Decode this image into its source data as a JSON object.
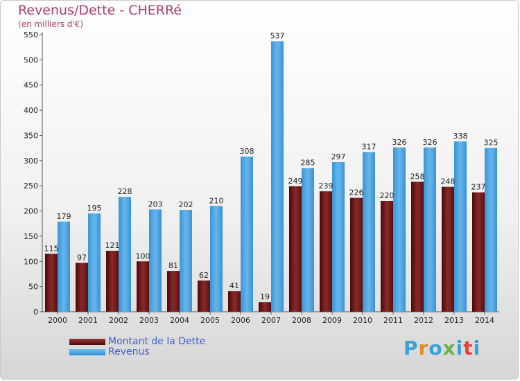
{
  "header": {
    "title": "Revenus/Dette - CHERRé",
    "subtitle": "(en milliers d'€)"
  },
  "logo": {
    "text": "Proxiti"
  },
  "colors": {
    "debt": "#6a1a1a",
    "revenue": "#4aa3e3",
    "title": "#b03a6a",
    "legend_text": "#3f5fd8"
  },
  "chart_data": {
    "type": "bar",
    "title": "Revenus/Dette - CHERRé",
    "subtitle": "(en milliers d'€)",
    "categories": [
      "2000",
      "2001",
      "2002",
      "2003",
      "2004",
      "2005",
      "2006",
      "2007",
      "2008",
      "2009",
      "2010",
      "2011",
      "2012",
      "2013",
      "2014"
    ],
    "series": [
      {
        "name": "Montant de la Dette",
        "values": [
          115,
          97,
          121,
          100,
          81,
          62,
          41,
          19,
          249,
          239,
          226,
          220,
          258,
          248,
          237
        ]
      },
      {
        "name": "Revenus",
        "values": [
          179,
          195,
          228,
          203,
          202,
          210,
          308,
          537,
          285,
          297,
          317,
          326,
          326,
          338,
          325
        ]
      }
    ],
    "ylim": [
      0,
      550
    ],
    "yticks": [
      0,
      50,
      100,
      150,
      200,
      250,
      300,
      350,
      400,
      450,
      500,
      550
    ],
    "grid": false,
    "legend": "bottom-left"
  }
}
